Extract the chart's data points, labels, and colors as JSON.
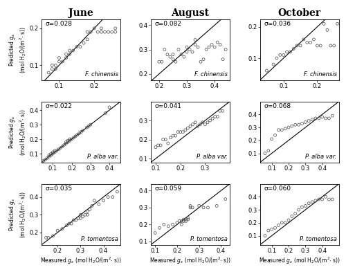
{
  "col_titles": [
    "June",
    "August",
    "October"
  ],
  "panels": [
    {
      "row": 0,
      "col": 0,
      "sigma": "σ=0.028",
      "species": "F. chinensis",
      "xlim": [
        0.05,
        0.275
      ],
      "ylim": [
        0.06,
        0.225
      ],
      "xticks": [
        0.1,
        0.2
      ],
      "yticks": [
        0.1,
        0.2
      ],
      "x": [
        0.07,
        0.08,
        0.08,
        0.09,
        0.09,
        0.1,
        0.1,
        0.11,
        0.12,
        0.12,
        0.13,
        0.13,
        0.14,
        0.15,
        0.16,
        0.17,
        0.18,
        0.18,
        0.19,
        0.2,
        0.21,
        0.22,
        0.22,
        0.23,
        0.24,
        0.25,
        0.26,
        0.26
      ],
      "y": [
        0.08,
        0.1,
        0.09,
        0.09,
        0.1,
        0.11,
        0.12,
        0.11,
        0.12,
        0.13,
        0.13,
        0.14,
        0.14,
        0.15,
        0.15,
        0.16,
        0.17,
        0.19,
        0.19,
        0.2,
        0.19,
        0.19,
        0.2,
        0.19,
        0.19,
        0.19,
        0.19,
        0.2
      ]
    },
    {
      "row": 0,
      "col": 1,
      "sigma": "σ=0.082",
      "species": "F. chinensis",
      "xlim": [
        0.17,
        0.455
      ],
      "ylim": [
        0.175,
        0.425
      ],
      "xticks": [
        0.2,
        0.3,
        0.4
      ],
      "yticks": [
        0.2,
        0.3,
        0.4
      ],
      "x": [
        0.2,
        0.21,
        0.22,
        0.23,
        0.24,
        0.25,
        0.25,
        0.26,
        0.27,
        0.28,
        0.29,
        0.3,
        0.3,
        0.31,
        0.32,
        0.33,
        0.33,
        0.34,
        0.35,
        0.36,
        0.37,
        0.38,
        0.39,
        0.4,
        0.41,
        0.42,
        0.43,
        0.44
      ],
      "y": [
        0.25,
        0.25,
        0.3,
        0.28,
        0.27,
        0.26,
        0.28,
        0.25,
        0.3,
        0.28,
        0.27,
        0.29,
        0.31,
        0.3,
        0.29,
        0.32,
        0.34,
        0.31,
        0.25,
        0.26,
        0.3,
        0.31,
        0.32,
        0.31,
        0.33,
        0.32,
        0.26,
        0.3
      ]
    },
    {
      "row": 0,
      "col": 2,
      "sigma": "σ=0.036",
      "species": "F. chinensis",
      "xlim": [
        0.03,
        0.265
      ],
      "ylim": [
        0.03,
        0.225
      ],
      "xticks": [
        0.1,
        0.2
      ],
      "yticks": [
        0.1,
        0.2
      ],
      "x": [
        0.05,
        0.07,
        0.08,
        0.09,
        0.1,
        0.11,
        0.12,
        0.13,
        0.14,
        0.15,
        0.16,
        0.17,
        0.18,
        0.19,
        0.2,
        0.21,
        0.22,
        0.23,
        0.24,
        0.25,
        0.26
      ],
      "y": [
        0.06,
        0.08,
        0.1,
        0.11,
        0.11,
        0.12,
        0.12,
        0.13,
        0.14,
        0.14,
        0.16,
        0.15,
        0.15,
        0.16,
        0.14,
        0.14,
        0.21,
        0.19,
        0.14,
        0.14,
        0.21
      ]
    },
    {
      "row": 1,
      "col": 0,
      "sigma": "σ=0.022",
      "species": "P. alba var.",
      "xlim": [
        0.04,
        0.46
      ],
      "ylim": [
        0.04,
        0.46
      ],
      "xticks": [
        0.1,
        0.2,
        0.3,
        0.4
      ],
      "yticks": [
        0.1,
        0.2,
        0.3,
        0.4
      ],
      "x": [
        0.05,
        0.06,
        0.07,
        0.08,
        0.08,
        0.09,
        0.09,
        0.1,
        0.1,
        0.11,
        0.11,
        0.12,
        0.13,
        0.14,
        0.15,
        0.16,
        0.17,
        0.17,
        0.18,
        0.18,
        0.19,
        0.19,
        0.2,
        0.21,
        0.22,
        0.23,
        0.24,
        0.25,
        0.26,
        0.28,
        0.29,
        0.3,
        0.38,
        0.4
      ],
      "y": [
        0.05,
        0.06,
        0.07,
        0.08,
        0.09,
        0.09,
        0.1,
        0.1,
        0.11,
        0.11,
        0.12,
        0.12,
        0.13,
        0.14,
        0.15,
        0.16,
        0.17,
        0.18,
        0.18,
        0.19,
        0.19,
        0.2,
        0.2,
        0.21,
        0.22,
        0.23,
        0.24,
        0.25,
        0.26,
        0.28,
        0.29,
        0.3,
        0.38,
        0.42
      ]
    },
    {
      "row": 1,
      "col": 1,
      "sigma": "σ=0.041",
      "species": "P. alba var.",
      "xlim": [
        0.08,
        0.4
      ],
      "ylim": [
        0.08,
        0.4
      ],
      "xticks": [
        0.1,
        0.2,
        0.3
      ],
      "yticks": [
        0.1,
        0.2,
        0.3
      ],
      "x": [
        0.1,
        0.11,
        0.12,
        0.13,
        0.14,
        0.15,
        0.16,
        0.17,
        0.18,
        0.19,
        0.2,
        0.21,
        0.22,
        0.23,
        0.24,
        0.25,
        0.26,
        0.27,
        0.28,
        0.29,
        0.3,
        0.31,
        0.32,
        0.33,
        0.34,
        0.35,
        0.36,
        0.37
      ],
      "y": [
        0.16,
        0.17,
        0.17,
        0.2,
        0.2,
        0.18,
        0.21,
        0.22,
        0.22,
        0.24,
        0.24,
        0.24,
        0.25,
        0.26,
        0.27,
        0.28,
        0.29,
        0.27,
        0.28,
        0.29,
        0.28,
        0.29,
        0.3,
        0.31,
        0.32,
        0.32,
        0.35,
        0.35
      ]
    },
    {
      "row": 1,
      "col": 2,
      "sigma": "σ=0.068",
      "species": "P. alba var.",
      "xlim": [
        0.03,
        0.5
      ],
      "ylim": [
        0.03,
        0.5
      ],
      "xticks": [
        0.1,
        0.2,
        0.3,
        0.4
      ],
      "yticks": [
        0.1,
        0.2,
        0.3,
        0.4
      ],
      "x": [
        0.06,
        0.08,
        0.1,
        0.12,
        0.14,
        0.16,
        0.18,
        0.2,
        0.22,
        0.24,
        0.26,
        0.28,
        0.3,
        0.32,
        0.34,
        0.36,
        0.38,
        0.4,
        0.42,
        0.44,
        0.46
      ],
      "y": [
        0.1,
        0.12,
        0.21,
        0.24,
        0.28,
        0.28,
        0.29,
        0.3,
        0.31,
        0.32,
        0.32,
        0.33,
        0.34,
        0.35,
        0.36,
        0.37,
        0.37,
        0.38,
        0.37,
        0.37,
        0.39
      ]
    },
    {
      "row": 2,
      "col": 0,
      "sigma": "σ=0.035",
      "species": "P. tomentosa",
      "xlim": [
        0.13,
        0.475
      ],
      "ylim": [
        0.13,
        0.475
      ],
      "xticks": [
        0.2,
        0.3,
        0.4
      ],
      "yticks": [
        0.2,
        0.3,
        0.4
      ],
      "x": [
        0.15,
        0.16,
        0.18,
        0.2,
        0.22,
        0.24,
        0.25,
        0.26,
        0.27,
        0.28,
        0.29,
        0.3,
        0.3,
        0.31,
        0.32,
        0.33,
        0.33,
        0.34,
        0.35,
        0.36,
        0.38,
        0.4,
        0.42,
        0.44,
        0.46
      ],
      "y": [
        0.17,
        0.17,
        0.18,
        0.21,
        0.22,
        0.24,
        0.25,
        0.25,
        0.27,
        0.27,
        0.28,
        0.28,
        0.3,
        0.29,
        0.3,
        0.3,
        0.32,
        0.33,
        0.35,
        0.38,
        0.36,
        0.38,
        0.4,
        0.4,
        0.43
      ]
    },
    {
      "row": 2,
      "col": 1,
      "sigma": "σ=0.059",
      "species": "P. tomentosa",
      "xlim": [
        0.08,
        0.44
      ],
      "ylim": [
        0.08,
        0.44
      ],
      "xticks": [
        0.1,
        0.2,
        0.3,
        0.4
      ],
      "yticks": [
        0.1,
        0.2,
        0.3,
        0.4
      ],
      "x": [
        0.1,
        0.12,
        0.14,
        0.16,
        0.18,
        0.2,
        0.21,
        0.22,
        0.22,
        0.23,
        0.23,
        0.24,
        0.24,
        0.25,
        0.25,
        0.26,
        0.26,
        0.27,
        0.3,
        0.32,
        0.34,
        0.38,
        0.42
      ],
      "y": [
        0.15,
        0.18,
        0.2,
        0.19,
        0.2,
        0.21,
        0.22,
        0.2,
        0.22,
        0.22,
        0.23,
        0.22,
        0.23,
        0.23,
        0.24,
        0.3,
        0.31,
        0.3,
        0.31,
        0.3,
        0.3,
        0.31,
        0.35
      ]
    },
    {
      "row": 2,
      "col": 2,
      "sigma": "σ=0.060",
      "species": "P. tomentosa",
      "xlim": [
        0.03,
        0.5
      ],
      "ylim": [
        0.03,
        0.5
      ],
      "xticks": [
        0.1,
        0.2,
        0.3,
        0.4
      ],
      "yticks": [
        0.1,
        0.2,
        0.3,
        0.4
      ],
      "x": [
        0.06,
        0.08,
        0.1,
        0.12,
        0.14,
        0.16,
        0.18,
        0.2,
        0.22,
        0.24,
        0.26,
        0.28,
        0.3,
        0.32,
        0.34,
        0.36,
        0.38,
        0.4,
        0.42,
        0.44,
        0.46
      ],
      "y": [
        0.1,
        0.14,
        0.15,
        0.16,
        0.18,
        0.2,
        0.2,
        0.22,
        0.25,
        0.27,
        0.3,
        0.32,
        0.33,
        0.35,
        0.36,
        0.37,
        0.38,
        0.38,
        0.4,
        0.38,
        0.38
      ]
    }
  ]
}
